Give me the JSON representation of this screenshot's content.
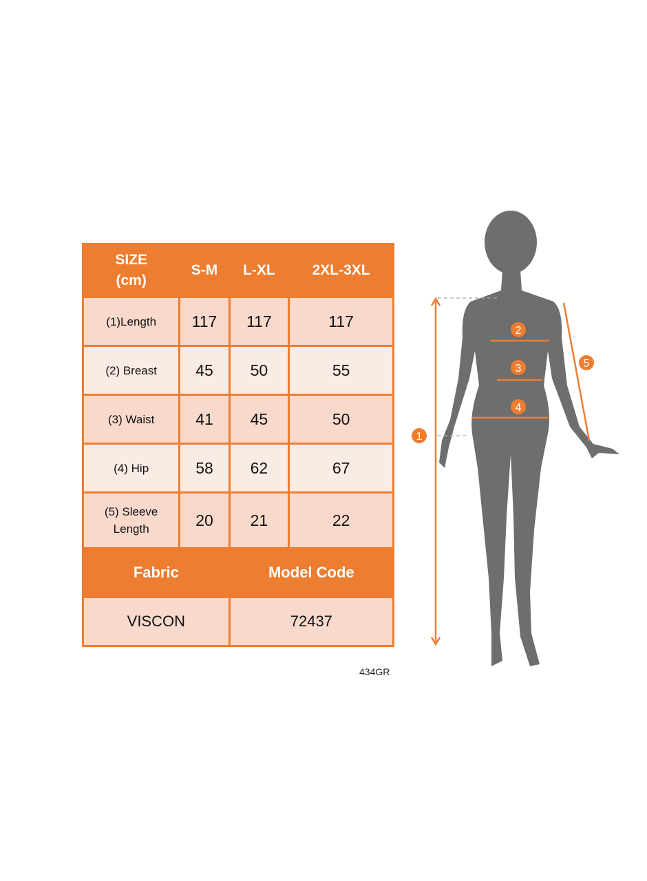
{
  "table": {
    "header": [
      "SIZE\n(cm)",
      "S-M",
      "L-XL",
      "2XL-3XL"
    ],
    "header_first_lines": [
      "SIZE",
      "(cm)"
    ],
    "rows": [
      {
        "label": "(1)Length",
        "values": [
          "117",
          "117",
          "117"
        ]
      },
      {
        "label": "(2) Breast",
        "values": [
          "45",
          "50",
          "55"
        ]
      },
      {
        "label": "(3) Waist",
        "values": [
          "41",
          "45",
          "50"
        ]
      },
      {
        "label": "(4) Hip",
        "values": [
          "58",
          "62",
          "67"
        ]
      },
      {
        "label_lines": [
          "(5) Sleeve",
          "Length"
        ],
        "values": [
          "20",
          "21",
          "22"
        ]
      }
    ],
    "footer_headers": [
      "Fabric",
      "Model Code"
    ],
    "footer_values": [
      "VISCON",
      "72437"
    ]
  },
  "product_code": "434GR",
  "figure": {
    "markers": [
      "1",
      "2",
      "3",
      "4",
      "5"
    ]
  },
  "colors": {
    "accent": "#ED7D31",
    "row_dark": "#F8D9CC",
    "row_light": "#FBEBE5",
    "silhouette": "#6E6E6E"
  }
}
